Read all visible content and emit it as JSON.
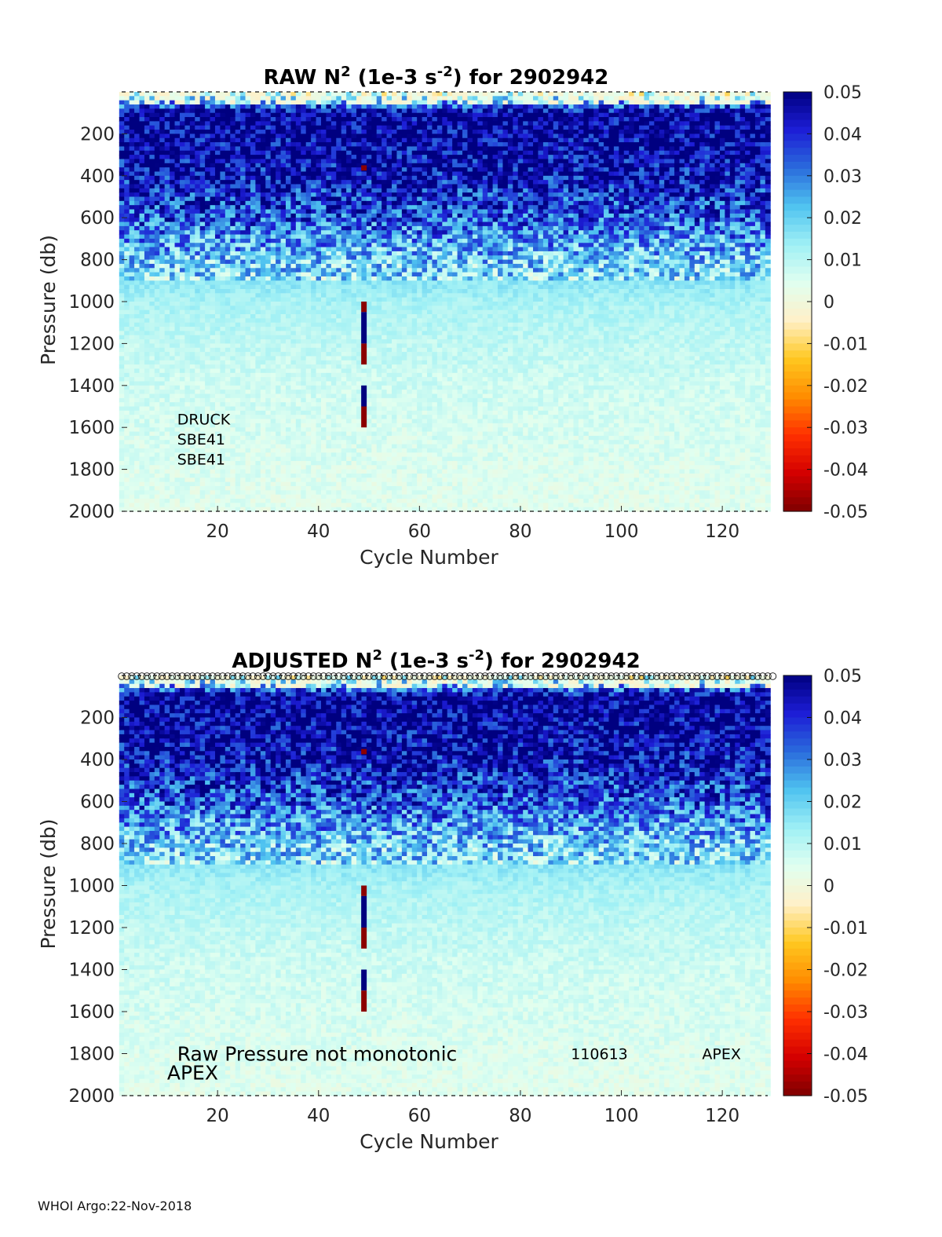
{
  "footer": "WHOI Argo:22-Nov-2018",
  "colors": {
    "colormap": [
      "#7f0000",
      "#d40000",
      "#ff3000",
      "#ff8c00",
      "#ffc820",
      "#fff0c8",
      "#e0fff0",
      "#9ff0f5",
      "#4fc3f0",
      "#2a6bdc",
      "#1d1dd6",
      "#000080"
    ],
    "axis": "#262626",
    "anomaly_positive": "#00007f",
    "anomaly_negative": "#8b0000"
  },
  "chart_data": [
    {
      "type": "heatmap",
      "title_prefix": "RAW N",
      "title_sup1": "2",
      "title_mid": " (1e-3 s",
      "title_sup2": "-2",
      "title_suffix": ") for 2902942",
      "xlabel": "Cycle Number",
      "ylabel": "Pressure (db)",
      "xlim": [
        1,
        129
      ],
      "ylim": [
        2000,
        0
      ],
      "xticks": [
        20,
        40,
        60,
        80,
        100,
        120
      ],
      "yticks": [
        200,
        400,
        600,
        800,
        1000,
        1200,
        1400,
        1600,
        1800,
        2000
      ],
      "clim": [
        -0.05,
        0.05
      ],
      "colorbar_ticks": [
        "0.05",
        "0.04",
        "0.03",
        "0.02",
        "0.01",
        "0",
        "-0.01",
        "-0.02",
        "-0.03",
        "-0.04",
        "-0.05"
      ],
      "profile": {
        "pressure": [
          0,
          100,
          200,
          400,
          600,
          800,
          1000,
          1200,
          1400,
          2000
        ],
        "n2": [
          0.0,
          0.05,
          0.048,
          0.044,
          0.035,
          0.02,
          0.012,
          0.009,
          0.007,
          0.004
        ]
      },
      "anomalies": {
        "cycle": 49,
        "segments": [
          [
            350,
            375,
            -0.05
          ],
          [
            1000,
            1050,
            -0.05
          ],
          [
            1050,
            1200,
            0.05
          ],
          [
            1200,
            1300,
            -0.05
          ],
          [
            1400,
            1500,
            0.05
          ],
          [
            1500,
            1600,
            -0.05
          ]
        ]
      },
      "annotations": [
        {
          "text": "DRUCK",
          "x": 12,
          "y": 1560
        },
        {
          "text": "SBE41",
          "x": 12,
          "y": 1655
        },
        {
          "text": "SBE41",
          "x": 12,
          "y": 1750
        }
      ],
      "top_markers": false
    },
    {
      "type": "heatmap",
      "title_prefix": "ADJUSTED N",
      "title_sup1": "2",
      "title_mid": " (1e-3 s",
      "title_sup2": "-2",
      "title_suffix": ") for 2902942",
      "xlabel": "Cycle Number",
      "ylabel": "Pressure (db)",
      "xlim": [
        1,
        129
      ],
      "ylim": [
        2000,
        0
      ],
      "xticks": [
        20,
        40,
        60,
        80,
        100,
        120
      ],
      "yticks": [
        200,
        400,
        600,
        800,
        1000,
        1200,
        1400,
        1600,
        1800,
        2000
      ],
      "clim": [
        -0.05,
        0.05
      ],
      "colorbar_ticks": [
        "0.05",
        "0.04",
        "0.03",
        "0.02",
        "0.01",
        "0",
        "-0.01",
        "-0.02",
        "-0.03",
        "-0.04",
        "-0.05"
      ],
      "profile": {
        "pressure": [
          0,
          100,
          200,
          400,
          600,
          800,
          1000,
          1200,
          1400,
          2000
        ],
        "n2": [
          0.0,
          0.05,
          0.048,
          0.044,
          0.035,
          0.02,
          0.012,
          0.009,
          0.007,
          0.004
        ]
      },
      "anomalies": {
        "cycle": 49,
        "segments": [
          [
            350,
            375,
            -0.05
          ],
          [
            1000,
            1050,
            -0.05
          ],
          [
            1050,
            1200,
            0.05
          ],
          [
            1200,
            1300,
            -0.05
          ],
          [
            1400,
            1500,
            0.05
          ],
          [
            1500,
            1600,
            -0.05
          ]
        ]
      },
      "annotations": [
        {
          "text": "Raw Pressure not monotonic",
          "x": 12,
          "y": 1800,
          "size": "large"
        },
        {
          "text": "APEX",
          "x": 10,
          "y": 1890,
          "size": "large"
        },
        {
          "text": "110613",
          "x": 90,
          "y": 1800
        },
        {
          "text": "APEX",
          "x": 116,
          "y": 1800
        }
      ],
      "top_markers": true
    }
  ]
}
